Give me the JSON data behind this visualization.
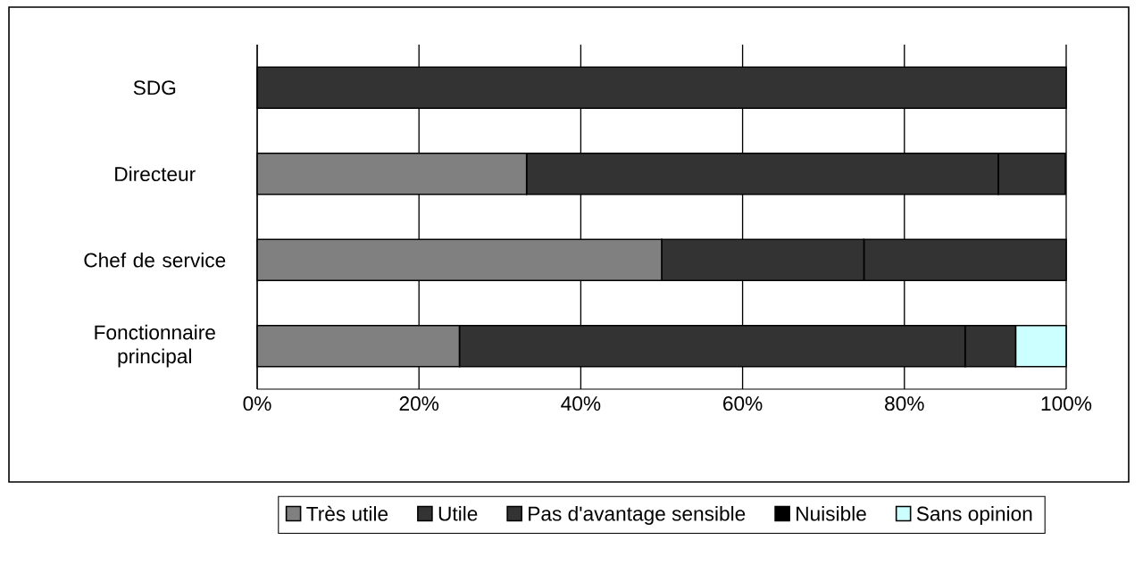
{
  "chart_data": {
    "type": "bar",
    "orientation": "horizontal",
    "stacked": true,
    "categories": [
      "SDG",
      "Directeur",
      "Chef de service",
      "Fonctionnaire principal"
    ],
    "series": [
      {
        "name": "Très utile",
        "color": "#808080",
        "values": [
          0,
          33.3,
          50,
          25
        ]
      },
      {
        "name": "Utile",
        "color": "#333333",
        "values": [
          100,
          58.3,
          25,
          62.5
        ]
      },
      {
        "name": "Pas d'avantage sensible",
        "color": "#333333",
        "values": [
          0,
          8.3,
          25,
          6.25
        ]
      },
      {
        "name": "Nuisible",
        "color": "#000000",
        "values": [
          0,
          0,
          0,
          0
        ]
      },
      {
        "name": "Sans opinion",
        "color": "#ccffff",
        "values": [
          0,
          0,
          0,
          6.25
        ]
      }
    ],
    "xlim": [
      0,
      100
    ],
    "xticks": [
      {
        "value": 0,
        "label": "0%"
      },
      {
        "value": 20,
        "label": "20%"
      },
      {
        "value": 40,
        "label": "40%"
      },
      {
        "value": 60,
        "label": "60%"
      },
      {
        "value": 80,
        "label": "80%"
      },
      {
        "value": 100,
        "label": "100%"
      }
    ],
    "grid": "x",
    "legend": "bottom"
  }
}
